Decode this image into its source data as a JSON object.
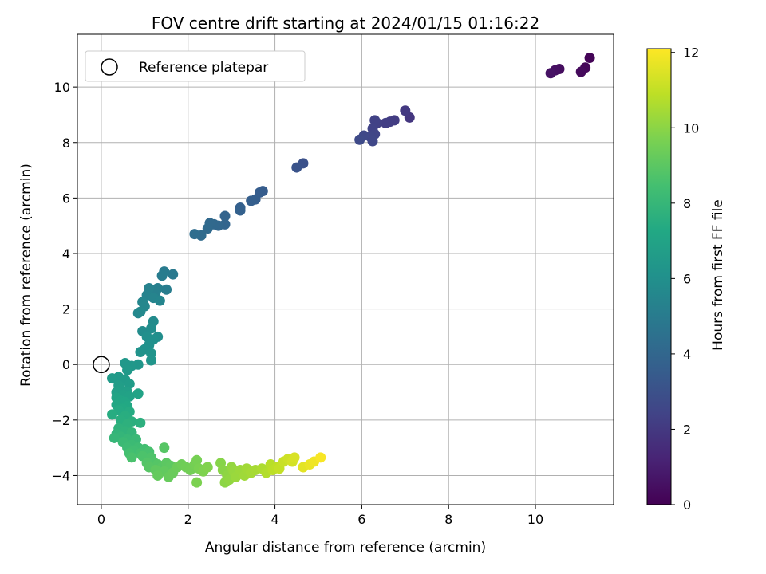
{
  "chart_data": {
    "type": "scatter",
    "title": "FOV centre drift starting at 2024/01/15 01:16:22",
    "xlabel": "Angular distance from reference (arcmin)",
    "ylabel": "Rotation from reference (arcmin)",
    "xlim": [
      -0.55,
      11.8
    ],
    "ylim": [
      -5.05,
      11.9
    ],
    "xticks": [
      0,
      2,
      4,
      6,
      8,
      10
    ],
    "yticks": [
      -4,
      -2,
      0,
      2,
      4,
      6,
      8,
      10
    ],
    "grid": true,
    "legend": {
      "placement": "top-left",
      "entries": [
        "Reference platepar"
      ]
    },
    "reference_point": {
      "x": 0,
      "y": 0
    },
    "colorbar": {
      "label": "Hours from first FF file",
      "colormap": "viridis",
      "range": [
        0,
        12.1
      ],
      "ticks": [
        0,
        2,
        4,
        6,
        8,
        10,
        12
      ]
    },
    "points": [
      {
        "x": 11.25,
        "y": 11.05,
        "c": 0.1
      },
      {
        "x": 11.15,
        "y": 10.7,
        "c": 0.2
      },
      {
        "x": 11.05,
        "y": 10.55,
        "c": 0.3
      },
      {
        "x": 10.55,
        "y": 10.65,
        "c": 0.4
      },
      {
        "x": 10.45,
        "y": 10.6,
        "c": 0.5
      },
      {
        "x": 10.35,
        "y": 10.5,
        "c": 0.6
      },
      {
        "x": 7.1,
        "y": 8.9,
        "c": 1.9
      },
      {
        "x": 7.0,
        "y": 9.15,
        "c": 2.0
      },
      {
        "x": 6.75,
        "y": 8.8,
        "c": 2.1
      },
      {
        "x": 6.65,
        "y": 8.75,
        "c": 2.15
      },
      {
        "x": 6.55,
        "y": 8.7,
        "c": 2.2
      },
      {
        "x": 6.35,
        "y": 8.7,
        "c": 2.3
      },
      {
        "x": 6.3,
        "y": 8.8,
        "c": 2.35
      },
      {
        "x": 6.25,
        "y": 8.5,
        "c": 2.4
      },
      {
        "x": 6.3,
        "y": 8.3,
        "c": 2.45
      },
      {
        "x": 6.2,
        "y": 8.2,
        "c": 2.5
      },
      {
        "x": 6.25,
        "y": 8.05,
        "c": 2.55
      },
      {
        "x": 6.05,
        "y": 8.25,
        "c": 2.6
      },
      {
        "x": 5.95,
        "y": 8.1,
        "c": 2.7
      },
      {
        "x": 4.65,
        "y": 7.25,
        "c": 3.0
      },
      {
        "x": 4.5,
        "y": 7.1,
        "c": 3.1
      },
      {
        "x": 3.72,
        "y": 6.25,
        "c": 3.5
      },
      {
        "x": 3.65,
        "y": 6.2,
        "c": 3.55
      },
      {
        "x": 3.55,
        "y": 5.95,
        "c": 3.6
      },
      {
        "x": 3.45,
        "y": 5.9,
        "c": 3.65
      },
      {
        "x": 3.2,
        "y": 5.65,
        "c": 3.7
      },
      {
        "x": 3.2,
        "y": 5.55,
        "c": 3.75
      },
      {
        "x": 2.85,
        "y": 5.35,
        "c": 3.85
      },
      {
        "x": 2.85,
        "y": 5.05,
        "c": 3.9
      },
      {
        "x": 2.7,
        "y": 5.0,
        "c": 4.0
      },
      {
        "x": 2.6,
        "y": 5.05,
        "c": 4.05
      },
      {
        "x": 2.5,
        "y": 5.1,
        "c": 4.1
      },
      {
        "x": 2.45,
        "y": 4.9,
        "c": 4.15
      },
      {
        "x": 2.3,
        "y": 4.65,
        "c": 4.2
      },
      {
        "x": 2.15,
        "y": 4.7,
        "c": 4.3
      },
      {
        "x": 1.65,
        "y": 3.25,
        "c": 4.9
      },
      {
        "x": 1.45,
        "y": 3.35,
        "c": 5.0
      },
      {
        "x": 1.4,
        "y": 3.2,
        "c": 5.05
      },
      {
        "x": 1.5,
        "y": 2.7,
        "c": 5.1
      },
      {
        "x": 1.3,
        "y": 2.75,
        "c": 5.2
      },
      {
        "x": 1.25,
        "y": 2.6,
        "c": 5.25
      },
      {
        "x": 1.1,
        "y": 2.75,
        "c": 5.3
      },
      {
        "x": 1.05,
        "y": 2.5,
        "c": 5.35
      },
      {
        "x": 1.2,
        "y": 2.4,
        "c": 5.4
      },
      {
        "x": 1.35,
        "y": 2.3,
        "c": 5.45
      },
      {
        "x": 0.95,
        "y": 2.25,
        "c": 5.5
      },
      {
        "x": 1.0,
        "y": 2.1,
        "c": 5.55
      },
      {
        "x": 0.85,
        "y": 1.85,
        "c": 5.6
      },
      {
        "x": 0.9,
        "y": 1.9,
        "c": 5.65
      },
      {
        "x": 1.2,
        "y": 1.55,
        "c": 5.75
      },
      {
        "x": 0.95,
        "y": 1.2,
        "c": 5.8
      },
      {
        "x": 1.15,
        "y": 1.3,
        "c": 5.85
      },
      {
        "x": 1.3,
        "y": 1.0,
        "c": 5.9
      },
      {
        "x": 1.05,
        "y": 1.0,
        "c": 5.95
      },
      {
        "x": 1.2,
        "y": 0.9,
        "c": 6.0
      },
      {
        "x": 1.1,
        "y": 0.7,
        "c": 6.05
      },
      {
        "x": 1.0,
        "y": 0.55,
        "c": 6.1
      },
      {
        "x": 0.9,
        "y": 0.45,
        "c": 6.15
      },
      {
        "x": 1.15,
        "y": 0.4,
        "c": 6.2
      },
      {
        "x": 1.15,
        "y": 0.15,
        "c": 6.25
      },
      {
        "x": 0.85,
        "y": 0.0,
        "c": 6.3
      },
      {
        "x": 0.7,
        "y": -0.05,
        "c": 6.35
      },
      {
        "x": 0.55,
        "y": 0.05,
        "c": 6.4
      },
      {
        "x": 0.6,
        "y": -0.2,
        "c": 6.45
      },
      {
        "x": 0.4,
        "y": -0.45,
        "c": 6.5
      },
      {
        "x": 0.25,
        "y": -0.5,
        "c": 6.55
      },
      {
        "x": 0.55,
        "y": -0.55,
        "c": 6.6
      },
      {
        "x": 0.65,
        "y": -0.7,
        "c": 6.65
      },
      {
        "x": 0.4,
        "y": -0.75,
        "c": 6.7
      },
      {
        "x": 0.45,
        "y": -0.9,
        "c": 6.75
      },
      {
        "x": 0.6,
        "y": -1.0,
        "c": 6.8
      },
      {
        "x": 0.35,
        "y": -1.0,
        "c": 6.85
      },
      {
        "x": 0.5,
        "y": -1.1,
        "c": 6.9
      },
      {
        "x": 0.65,
        "y": -1.15,
        "c": 6.95
      },
      {
        "x": 0.85,
        "y": -1.05,
        "c": 7.0
      },
      {
        "x": 0.35,
        "y": -1.2,
        "c": 7.05
      },
      {
        "x": 0.45,
        "y": -1.3,
        "c": 7.1
      },
      {
        "x": 0.55,
        "y": -1.35,
        "c": 7.15
      },
      {
        "x": 0.35,
        "y": -1.45,
        "c": 7.2
      },
      {
        "x": 0.6,
        "y": -1.5,
        "c": 7.25
      },
      {
        "x": 0.5,
        "y": -1.6,
        "c": 7.3
      },
      {
        "x": 0.4,
        "y": -1.65,
        "c": 7.35
      },
      {
        "x": 0.65,
        "y": -1.7,
        "c": 7.4
      },
      {
        "x": 0.25,
        "y": -1.8,
        "c": 7.45
      },
      {
        "x": 0.55,
        "y": -1.85,
        "c": 7.5
      },
      {
        "x": 0.45,
        "y": -2.0,
        "c": 7.55
      },
      {
        "x": 0.7,
        "y": -2.05,
        "c": 7.6
      },
      {
        "x": 0.9,
        "y": -2.1,
        "c": 7.65
      },
      {
        "x": 0.6,
        "y": -2.15,
        "c": 7.7
      },
      {
        "x": 0.4,
        "y": -2.3,
        "c": 7.75
      },
      {
        "x": 0.55,
        "y": -2.4,
        "c": 7.8
      },
      {
        "x": 0.35,
        "y": -2.5,
        "c": 7.85
      },
      {
        "x": 0.7,
        "y": -2.45,
        "c": 7.9
      },
      {
        "x": 0.45,
        "y": -2.6,
        "c": 7.95
      },
      {
        "x": 0.3,
        "y": -2.65,
        "c": 8.0
      },
      {
        "x": 0.6,
        "y": -2.7,
        "c": 8.05
      },
      {
        "x": 0.8,
        "y": -2.7,
        "c": 8.1
      },
      {
        "x": 0.5,
        "y": -2.8,
        "c": 8.15
      },
      {
        "x": 0.7,
        "y": -2.9,
        "c": 8.2
      },
      {
        "x": 0.6,
        "y": -3.0,
        "c": 8.25
      },
      {
        "x": 0.85,
        "y": -3.0,
        "c": 8.3
      },
      {
        "x": 0.75,
        "y": -3.1,
        "c": 8.35
      },
      {
        "x": 1.0,
        "y": -3.05,
        "c": 8.4
      },
      {
        "x": 0.65,
        "y": -3.2,
        "c": 8.45
      },
      {
        "x": 0.9,
        "y": -3.2,
        "c": 8.5
      },
      {
        "x": 1.1,
        "y": -3.15,
        "c": 8.55
      },
      {
        "x": 0.7,
        "y": -3.35,
        "c": 8.6
      },
      {
        "x": 0.95,
        "y": -3.3,
        "c": 8.65
      },
      {
        "x": 1.15,
        "y": -3.35,
        "c": 8.7
      },
      {
        "x": 1.2,
        "y": -3.5,
        "c": 8.75
      },
      {
        "x": 1.05,
        "y": -3.55,
        "c": 8.8
      },
      {
        "x": 1.3,
        "y": -3.6,
        "c": 8.85
      },
      {
        "x": 1.1,
        "y": -3.7,
        "c": 8.9
      },
      {
        "x": 1.45,
        "y": -3.0,
        "c": 8.9
      },
      {
        "x": 1.4,
        "y": -3.7,
        "c": 8.95
      },
      {
        "x": 1.5,
        "y": -3.55,
        "c": 9.0
      },
      {
        "x": 1.6,
        "y": -3.65,
        "c": 9.05
      },
      {
        "x": 1.25,
        "y": -3.8,
        "c": 9.1
      },
      {
        "x": 1.45,
        "y": -3.85,
        "c": 9.15
      },
      {
        "x": 1.3,
        "y": -4.0,
        "c": 9.2
      },
      {
        "x": 1.55,
        "y": -4.05,
        "c": 9.25
      },
      {
        "x": 1.65,
        "y": -3.9,
        "c": 9.3
      },
      {
        "x": 1.75,
        "y": -3.7,
        "c": 9.35
      },
      {
        "x": 1.85,
        "y": -3.6,
        "c": 9.4
      },
      {
        "x": 1.95,
        "y": -3.7,
        "c": 9.45
      },
      {
        "x": 2.05,
        "y": -3.8,
        "c": 9.5
      },
      {
        "x": 2.15,
        "y": -3.6,
        "c": 9.55
      },
      {
        "x": 2.2,
        "y": -3.45,
        "c": 9.6
      },
      {
        "x": 2.25,
        "y": -3.75,
        "c": 9.65
      },
      {
        "x": 2.2,
        "y": -4.25,
        "c": 9.7
      },
      {
        "x": 2.35,
        "y": -3.85,
        "c": 9.75
      },
      {
        "x": 2.45,
        "y": -3.7,
        "c": 9.8
      },
      {
        "x": 2.75,
        "y": -3.55,
        "c": 9.9
      },
      {
        "x": 2.8,
        "y": -3.8,
        "c": 9.95
      },
      {
        "x": 2.85,
        "y": -4.25,
        "c": 10.0
      },
      {
        "x": 2.9,
        "y": -4.0,
        "c": 10.05
      },
      {
        "x": 2.95,
        "y": -4.15,
        "c": 10.1
      },
      {
        "x": 3.0,
        "y": -3.7,
        "c": 10.15
      },
      {
        "x": 3.05,
        "y": -3.85,
        "c": 10.2
      },
      {
        "x": 3.1,
        "y": -4.05,
        "c": 10.25
      },
      {
        "x": 3.2,
        "y": -3.8,
        "c": 10.3
      },
      {
        "x": 3.3,
        "y": -4.0,
        "c": 10.35
      },
      {
        "x": 3.35,
        "y": -3.75,
        "c": 10.4
      },
      {
        "x": 3.45,
        "y": -3.9,
        "c": 10.45
      },
      {
        "x": 3.55,
        "y": -3.8,
        "c": 10.5
      },
      {
        "x": 3.7,
        "y": -3.75,
        "c": 10.6
      },
      {
        "x": 3.8,
        "y": -3.9,
        "c": 10.7
      },
      {
        "x": 3.9,
        "y": -3.6,
        "c": 10.8
      },
      {
        "x": 3.95,
        "y": -3.8,
        "c": 10.85
      },
      {
        "x": 4.05,
        "y": -3.7,
        "c": 10.9
      },
      {
        "x": 4.1,
        "y": -3.75,
        "c": 11.0
      },
      {
        "x": 4.2,
        "y": -3.5,
        "c": 11.1
      },
      {
        "x": 4.3,
        "y": -3.4,
        "c": 11.2
      },
      {
        "x": 4.4,
        "y": -3.5,
        "c": 11.3
      },
      {
        "x": 4.45,
        "y": -3.35,
        "c": 11.4
      },
      {
        "x": 4.65,
        "y": -3.7,
        "c": 11.6
      },
      {
        "x": 4.8,
        "y": -3.6,
        "c": 11.75
      },
      {
        "x": 4.9,
        "y": -3.5,
        "c": 11.85
      },
      {
        "x": 5.05,
        "y": -3.35,
        "c": 12.0
      }
    ]
  }
}
